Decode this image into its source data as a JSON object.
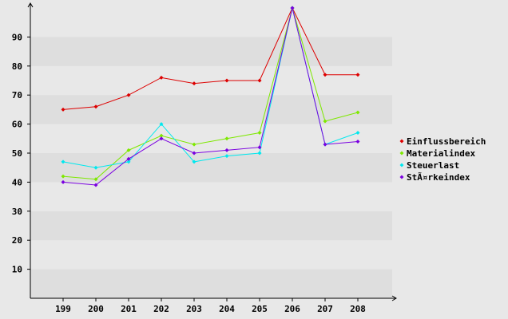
{
  "chart_data": {
    "type": "line",
    "title": "",
    "xlabel": "",
    "ylabel": "",
    "categories": [
      "199",
      "200",
      "201",
      "202",
      "203",
      "204",
      "205",
      "206",
      "207",
      "208"
    ],
    "ylim": [
      0,
      100
    ],
    "yticks": [
      10,
      20,
      30,
      40,
      50,
      60,
      70,
      80,
      90
    ],
    "grid": "horizontal alternating bands",
    "legend_position": "right",
    "series": [
      {
        "name": "Einflussbereich",
        "color": "#dd0000",
        "values": [
          65,
          66,
          70,
          76,
          74,
          75,
          75,
          100,
          77,
          77
        ]
      },
      {
        "name": "Materialindex",
        "color": "#7ee800",
        "values": [
          42,
          41,
          51,
          56,
          53,
          55,
          57,
          100,
          61,
          64
        ]
      },
      {
        "name": "Steuerlast",
        "color": "#00e8ee",
        "values": [
          47,
          45,
          47,
          60,
          47,
          49,
          50,
          100,
          53,
          57
        ]
      },
      {
        "name": "StÃ¤rkeindex",
        "color": "#7a00e0",
        "values": [
          40,
          39,
          48,
          55,
          50,
          51,
          52,
          100,
          53,
          54
        ]
      }
    ]
  }
}
